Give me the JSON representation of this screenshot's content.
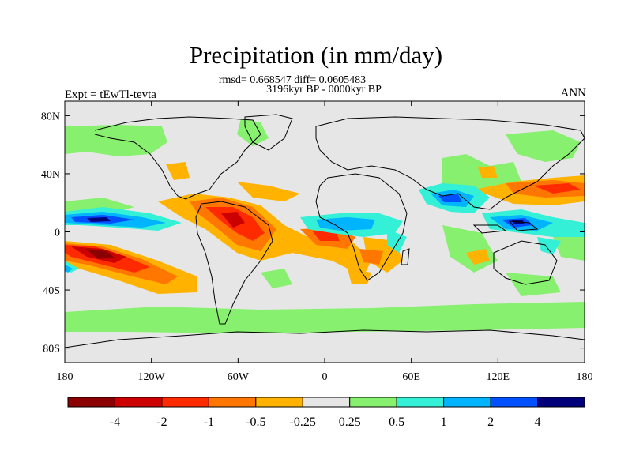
{
  "title": "Precipitation (in mm/day)",
  "stats_line": "rmsd= 0.668547 diff= 0.0605483",
  "period_line": "3196kyr BP - 0000kyr BP",
  "experiment_label": "Expt = tEwTl-tevta",
  "season_label": "ANN",
  "map": {
    "lon_range": [
      -180,
      180
    ],
    "lat_range": [
      -90,
      90
    ],
    "x_ticks": [
      {
        "value": -180,
        "label": "180"
      },
      {
        "value": -120,
        "label": "120W"
      },
      {
        "value": -60,
        "label": "60W"
      },
      {
        "value": 0,
        "label": "0"
      },
      {
        "value": 60,
        "label": "60E"
      },
      {
        "value": 120,
        "label": "120E"
      },
      {
        "value": 180,
        "label": "180"
      }
    ],
    "y_ticks": [
      {
        "value": 80,
        "label": "80N"
      },
      {
        "value": 40,
        "label": "40N"
      },
      {
        "value": 0,
        "label": "0"
      },
      {
        "value": -40,
        "label": "40S"
      },
      {
        "value": -80,
        "label": "80S"
      }
    ],
    "background_color": "#e6e6e6"
  },
  "colorbar": {
    "colors": [
      "#8b0000",
      "#cc0000",
      "#ff2a00",
      "#ff7700",
      "#ffb300",
      "#e6e6e6",
      "#87f06e",
      "#33f0d7",
      "#00b4ff",
      "#0050ff",
      "#00007a"
    ],
    "labels": [
      "-4",
      "-2",
      "-1",
      "-0.5",
      "-0.25",
      "0.25",
      "0.5",
      "1",
      "2",
      "4"
    ]
  }
}
